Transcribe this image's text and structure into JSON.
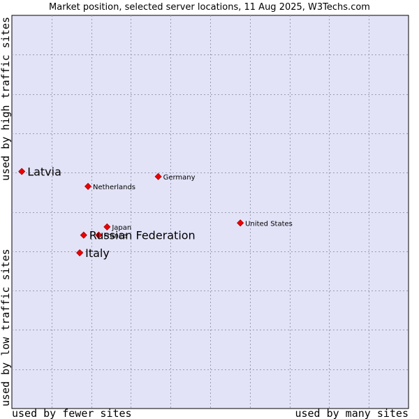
{
  "chart_data": {
    "type": "scatter",
    "title": "Market position, selected server locations, 11 Aug 2025, W3Techs.com",
    "x_label_low": "used by fewer sites",
    "x_label_high": "used by many sites",
    "y_label_low": "used by low traffic sites",
    "y_label_high": "used by high traffic sites",
    "xlim": [
      0,
      100
    ],
    "ylim": [
      0,
      100
    ],
    "grid": true,
    "plot_background": "#e3e3f8",
    "point_color": "#ee0000",
    "points": [
      {
        "label": "Latvia",
        "x": 2.5,
        "y": 60.3,
        "size": "large"
      },
      {
        "label": "Netherlands",
        "x": 19.2,
        "y": 56.5,
        "size": "small"
      },
      {
        "label": "Germany",
        "x": 36.9,
        "y": 59.0,
        "size": "small"
      },
      {
        "label": "United States",
        "x": 57.6,
        "y": 47.2,
        "size": "small"
      },
      {
        "label": "Japan",
        "x": 24.0,
        "y": 46.2,
        "size": "small"
      },
      {
        "label": "France",
        "x": 21.9,
        "y": 44.1,
        "size": "small"
      },
      {
        "label": "Russian Federation",
        "x": 18.1,
        "y": 44.1,
        "size": "large"
      },
      {
        "label": "Italy",
        "x": 17.1,
        "y": 39.6,
        "size": "large"
      }
    ]
  }
}
